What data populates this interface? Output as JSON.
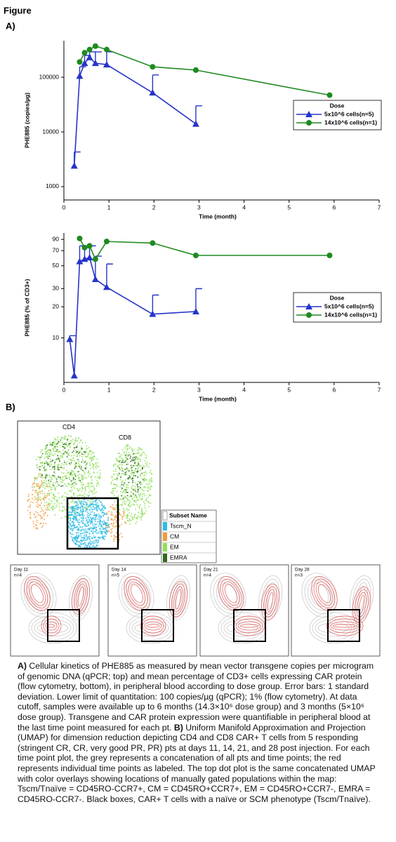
{
  "figure_label": "Figure",
  "panel_a": "A)",
  "panel_b": "B)",
  "chart_data": [
    {
      "type": "line",
      "x_label": "Time (month)",
      "y_label": "PHE885 (copies/µg)",
      "log_y": true,
      "legend": "right",
      "legend_title": "Dose",
      "xlim": [
        0,
        7
      ],
      "xticks": [
        0,
        1,
        2,
        3,
        4,
        5,
        6,
        7
      ],
      "ylim": [
        570,
        465000
      ],
      "yticks": [
        1000,
        10000,
        100000
      ],
      "series": [
        {
          "name": "5x10^6 cells(n=5)",
          "color": "#2634c8",
          "marker": "triangle",
          "x": [
            0.23,
            0.35,
            0.46,
            0.57,
            0.7,
            0.95,
            1.97,
            2.93
          ],
          "values": [
            2400,
            105000,
            180000,
            230000,
            180000,
            170000,
            52000,
            14000
          ],
          "errors": [
            1900,
            50000,
            70000,
            60000,
            110000,
            120000,
            58000,
            16000
          ]
        },
        {
          "name": "14x10^6 cells(n=1)",
          "color": "#1f8a1f",
          "marker": "circle",
          "x": [
            0.35,
            0.46,
            0.57,
            0.7,
            0.95,
            1.97,
            2.93,
            5.9
          ],
          "values": [
            190000,
            280000,
            320000,
            370000,
            320000,
            155000,
            135000,
            47000
          ]
        }
      ]
    },
    {
      "type": "line",
      "x_label": "Time (month)",
      "y_label": "PHE885 (% of CD3+)",
      "log_y": true,
      "legend": "right",
      "legend_title": "Dose",
      "xlim": [
        0,
        7
      ],
      "xticks": [
        0,
        1,
        2,
        3,
        4,
        5,
        6,
        7
      ],
      "ylim": [
        3.7,
        104
      ],
      "yticks": [
        10,
        20,
        30,
        50,
        70,
        90
      ],
      "series": [
        {
          "name": "5x10^6 cells(n=5)",
          "color": "#2634c8",
          "marker": "triangle",
          "x": [
            0.13,
            0.23,
            0.35,
            0.46,
            0.57,
            0.7,
            0.95,
            1.97,
            2.93
          ],
          "values": [
            9.7,
            4.3,
            55,
            58,
            60,
            37,
            31,
            17,
            18
          ],
          "errors": [
            0.8,
            null,
            23,
            17,
            18,
            25,
            21,
            9,
            12
          ]
        },
        {
          "name": "14x10^6 cells(n=1)",
          "color": "#1f8a1f",
          "marker": "circle",
          "x": [
            0.35,
            0.46,
            0.57,
            0.7,
            0.95,
            1.97,
            2.93,
            5.9
          ],
          "values": [
            92,
            75,
            78,
            58,
            86,
            83,
            63,
            63
          ]
        }
      ]
    }
  ],
  "umap": {
    "cd4": "CD4",
    "cd8": "CD8",
    "legend_title": "Subset Name",
    "subsets": [
      {
        "name": "Tscm_N",
        "color": "#2bbbe6"
      },
      {
        "name": "CM",
        "color": "#f39a3a"
      },
      {
        "name": "EM",
        "color": "#8ee05a"
      },
      {
        "name": "EMRA",
        "color": "#2f6b1c"
      }
    ],
    "days": [
      {
        "label": "Day 11",
        "n": "n=4"
      },
      {
        "label": "Day 14",
        "n": "n=5"
      },
      {
        "label": "Day 21",
        "n": "n=4"
      },
      {
        "label": "Day 28",
        "n": "n=3"
      }
    ]
  },
  "caption": {
    "a_label": "A)",
    "a_text": "Cellular kinetics of PHE885 as measured by mean vector transgene copies per microgram of genomic DNA (qPCR; top) and mean percentage of CD3+ cells expressing CAR protein (flow cytometry, bottom), in peripheral blood according to dose group. Error bars: 1 standard deviation. Lower limit of quantitation: 100 copies/µg (qPCR); 1% (flow cytometry). At data cutoff, samples were available up to 6 months (14.3×10⁶ dose group) and 3 months (5×10⁶ dose group). Transgene and CAR protein expression were quantifiable in peripheral blood at the last time point measured for each pt.",
    "b_label": "B)",
    "b_text": "Uniform Manifold Approximation and Projection (UMAP) for dimension reduction depicting CD4 and CD8 CAR+ T cells from 5 responding (stringent CR, CR, very good PR, PR) pts at days 11, 14, 21, and 28 post injection. For each time point plot, the grey represents a concatenation of all pts and time points; the red represents individual time points as labeled. The top dot plot is the same concatenated UMAP with color overlays showing locations of manually gated populations within the map: Tscm/Tnaïve = CD45RO-CCR7+, CM = CD45RO+CCR7+, EM = CD45RO+CCR7-, EMRA = CD45RO-CCR7-. Black boxes, CAR+ T cells with a naïve or SCM phenotype (Tscm/Tnaïve)."
  }
}
